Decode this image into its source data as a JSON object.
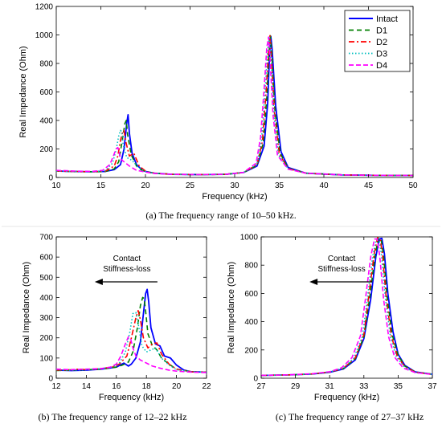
{
  "chart_data": [
    {
      "id": "a",
      "type": "line",
      "caption_tag": "(a)",
      "caption": " The frequency range of 10–50 kHz.",
      "xlabel": "Frequency (kHz)",
      "ylabel": "Real Impedance (Ohm)",
      "xlim": [
        10,
        50
      ],
      "ylim": [
        0,
        1200
      ],
      "xticks": [
        10,
        15,
        20,
        25,
        30,
        35,
        40,
        45,
        50
      ],
      "yticks": [
        0,
        200,
        400,
        600,
        800,
        1000,
        1200
      ],
      "legend_position": "top-right",
      "series": [
        {
          "name": "Intact",
          "color": "#0000ff",
          "dash": "solid",
          "x": [
            10,
            12,
            14,
            15.5,
            16.5,
            17.2,
            17.6,
            17.9,
            18.05,
            18.2,
            18.5,
            19,
            19.5,
            20,
            21,
            23,
            26,
            29,
            31,
            32.5,
            33.3,
            33.7,
            33.9,
            34.05,
            34.2,
            34.6,
            35.2,
            36,
            38,
            42,
            46,
            50
          ],
          "y": [
            45,
            42,
            40,
            42,
            55,
            90,
            200,
            380,
            440,
            310,
            170,
            90,
            60,
            42,
            30,
            22,
            20,
            22,
            35,
            80,
            220,
            520,
            850,
            990,
            900,
            500,
            180,
            70,
            30,
            18,
            15,
            14
          ]
        },
        {
          "name": "D1",
          "color": "#008000",
          "dash": "6,4",
          "x": [
            10,
            12,
            14,
            15.5,
            16.5,
            17,
            17.4,
            17.7,
            17.85,
            18,
            18.4,
            19,
            19.5,
            20,
            21,
            23,
            26,
            29,
            31,
            32.5,
            33.2,
            33.6,
            33.85,
            34,
            34.15,
            34.5,
            35.1,
            36,
            38,
            42,
            46,
            50
          ],
          "y": [
            45,
            42,
            40,
            42,
            60,
            110,
            260,
            380,
            400,
            300,
            160,
            80,
            55,
            40,
            30,
            22,
            20,
            22,
            35,
            85,
            240,
            560,
            880,
            995,
            880,
            480,
            170,
            65,
            30,
            18,
            15,
            14
          ]
        },
        {
          "name": "D2",
          "color": "#ff0000",
          "dash": "7,3,2,3",
          "x": [
            10,
            12,
            14,
            15.5,
            16.5,
            16.9,
            17.2,
            17.45,
            17.6,
            17.8,
            18.2,
            18.7,
            19.3,
            20,
            21,
            23,
            26,
            29,
            31,
            32.5,
            33.1,
            33.5,
            33.8,
            33.95,
            34.1,
            34.45,
            35,
            36,
            38,
            42,
            46,
            50
          ],
          "y": [
            45,
            42,
            40,
            45,
            80,
            150,
            260,
            320,
            330,
            250,
            150,
            170,
            80,
            45,
            30,
            22,
            20,
            22,
            35,
            90,
            250,
            580,
            890,
            995,
            860,
            460,
            165,
            62,
            30,
            18,
            15,
            14
          ]
        },
        {
          "name": "D3",
          "color": "#00bfbf",
          "dash": "1.5,2.5",
          "x": [
            10,
            12,
            14,
            15.5,
            16.3,
            16.7,
            17,
            17.2,
            17.35,
            17.5,
            17.9,
            18.5,
            19.2,
            20,
            21,
            23,
            26,
            29,
            31,
            32.5,
            33,
            33.4,
            33.7,
            33.9,
            34.05,
            34.4,
            34.9,
            36,
            38,
            42,
            46,
            50
          ],
          "y": [
            45,
            42,
            40,
            48,
            100,
            190,
            290,
            330,
            320,
            230,
            140,
            120,
            70,
            42,
            30,
            22,
            20,
            22,
            35,
            95,
            260,
            600,
            900,
            990,
            860,
            450,
            160,
            60,
            30,
            18,
            15,
            14
          ]
        },
        {
          "name": "D4",
          "color": "#ff00ff",
          "dash": "6,3",
          "x": [
            10,
            12,
            14,
            15.2,
            16,
            16.4,
            16.7,
            16.9,
            17.05,
            17.2,
            17.6,
            18.2,
            19,
            20,
            21,
            23,
            26,
            29,
            31,
            32.4,
            32.9,
            33.3,
            33.6,
            33.8,
            33.95,
            34.3,
            34.8,
            36,
            38,
            42,
            46,
            50
          ],
          "y": [
            50,
            45,
            42,
            50,
            90,
            150,
            200,
            210,
            180,
            130,
            110,
            80,
            50,
            38,
            28,
            22,
            20,
            22,
            36,
            100,
            280,
            620,
            910,
            985,
            850,
            440,
            155,
            58,
            30,
            18,
            15,
            14
          ]
        }
      ]
    },
    {
      "id": "b",
      "type": "line",
      "caption_tag": "(b)",
      "caption": " The frequency range of 12–22 kHz",
      "xlabel": "Frequency (kHz)",
      "ylabel": "Real Impedance (Ohm)",
      "xlim": [
        12,
        22
      ],
      "ylim": [
        0,
        700
      ],
      "xticks": [
        12,
        14,
        16,
        18,
        20,
        22
      ],
      "yticks": [
        0,
        100,
        200,
        300,
        400,
        500,
        600,
        700
      ],
      "annotation": {
        "line1": "Contact",
        "line2": "Stiffness-loss",
        "arrow": "left"
      },
      "series": [
        {
          "name": "Intact",
          "color": "#0000ff",
          "dash": "solid",
          "x": [
            12,
            13,
            14,
            15,
            15.5,
            16,
            16.5,
            16.8,
            17,
            17.3,
            17.6,
            17.8,
            17.95,
            18.05,
            18.15,
            18.3,
            18.6,
            18.9,
            19.2,
            19.6,
            20,
            20.5,
            21,
            22
          ],
          "y": [
            40,
            38,
            40,
            45,
            50,
            55,
            75,
            60,
            70,
            100,
            180,
            320,
            420,
            440,
            380,
            250,
            170,
            160,
            110,
            100,
            65,
            40,
            32,
            30
          ]
        },
        {
          "name": "D1",
          "color": "#008000",
          "dash": "6,4",
          "x": [
            12,
            13,
            14,
            15,
            15.5,
            16,
            16.4,
            16.8,
            17.1,
            17.4,
            17.6,
            17.75,
            17.85,
            17.95,
            18.1,
            18.4,
            18.7,
            19,
            19.5,
            20,
            21,
            22
          ],
          "y": [
            38,
            40,
            42,
            45,
            50,
            55,
            65,
            80,
            130,
            250,
            360,
            400,
            395,
            330,
            220,
            160,
            140,
            100,
            70,
            45,
            32,
            30
          ]
        },
        {
          "name": "D2",
          "color": "#ff0000",
          "dash": "7,3,2,3",
          "x": [
            12,
            13,
            13.5,
            14,
            15,
            15.7,
            16.2,
            16.7,
            17,
            17.3,
            17.45,
            17.6,
            17.8,
            18.1,
            18.4,
            18.7,
            19,
            19.5,
            20,
            21,
            22
          ],
          "y": [
            40,
            42,
            45,
            42,
            48,
            55,
            70,
            110,
            200,
            300,
            335,
            290,
            200,
            150,
            170,
            175,
            120,
            70,
            45,
            32,
            30
          ]
        },
        {
          "name": "D3",
          "color": "#00bfbf",
          "dash": "1.5,2.5",
          "x": [
            12,
            13,
            14,
            15,
            15.7,
            16.2,
            16.6,
            16.9,
            17.1,
            17.3,
            17.5,
            17.7,
            18,
            18.3,
            18.6,
            19,
            19.5,
            20,
            21,
            22
          ],
          "y": [
            42,
            40,
            42,
            48,
            55,
            75,
            130,
            230,
            320,
            325,
            250,
            160,
            130,
            140,
            150,
            100,
            65,
            42,
            32,
            30
          ]
        },
        {
          "name": "D4",
          "color": "#ff00ff",
          "dash": "6,3",
          "x": [
            12,
            13,
            14,
            15,
            15.6,
            16,
            16.3,
            16.6,
            16.8,
            16.95,
            17.1,
            17.3,
            17.6,
            18,
            18.4,
            19,
            19.5,
            20,
            21,
            22
          ],
          "y": [
            45,
            42,
            45,
            48,
            55,
            70,
            110,
            170,
            205,
            195,
            150,
            110,
            90,
            75,
            60,
            48,
            40,
            35,
            30,
            28
          ]
        }
      ]
    },
    {
      "id": "c",
      "type": "line",
      "caption_tag": "(c)",
      "caption": " The frequency range of 27–37 kHz",
      "xlabel": "Frequency (kHz)",
      "ylabel": "Real Impedance (Ohm)",
      "xlim": [
        27,
        37
      ],
      "ylim": [
        0,
        1000
      ],
      "xticks": [
        27,
        29,
        31,
        33,
        35,
        37
      ],
      "yticks": [
        0,
        200,
        400,
        600,
        800,
        1000
      ],
      "annotation": {
        "line1": "Contact",
        "line2": "Stiffness-loss",
        "arrow": "left"
      },
      "series": [
        {
          "name": "Intact",
          "color": "#0000ff",
          "dash": "solid",
          "x": [
            27,
            28,
            29,
            30,
            31,
            31.8,
            32.5,
            33,
            33.4,
            33.7,
            33.9,
            34.05,
            34.2,
            34.4,
            34.7,
            35,
            35.4,
            36,
            37
          ],
          "y": [
            20,
            22,
            25,
            30,
            42,
            65,
            130,
            280,
            560,
            860,
            985,
            990,
            880,
            600,
            330,
            170,
            90,
            45,
            28
          ]
        },
        {
          "name": "D1",
          "color": "#008000",
          "dash": "6,4",
          "x": [
            27,
            28,
            29,
            30,
            31,
            31.8,
            32.5,
            33,
            33.35,
            33.65,
            33.85,
            34,
            34.15,
            34.35,
            34.65,
            35,
            35.4,
            36,
            37
          ],
          "y": [
            20,
            22,
            25,
            30,
            43,
            68,
            138,
            295,
            580,
            870,
            990,
            985,
            870,
            580,
            310,
            160,
            85,
            44,
            28
          ]
        },
        {
          "name": "D2",
          "color": "#ff0000",
          "dash": "7,3,2,3",
          "x": [
            27,
            28,
            29,
            30,
            31,
            31.8,
            32.5,
            33,
            33.3,
            33.6,
            33.8,
            33.95,
            34.1,
            34.3,
            34.6,
            34.95,
            35.4,
            36,
            37
          ],
          "y": [
            20,
            22,
            25,
            31,
            44,
            70,
            145,
            310,
            600,
            880,
            995,
            985,
            860,
            570,
            300,
            155,
            80,
            42,
            27
          ]
        },
        {
          "name": "D3",
          "color": "#00bfbf",
          "dash": "1.5,2.5",
          "x": [
            27,
            28,
            29,
            30,
            31,
            31.8,
            32.4,
            32.9,
            33.2,
            33.5,
            33.72,
            33.88,
            34.03,
            34.25,
            34.55,
            34.9,
            35.4,
            36,
            37
          ],
          "y": [
            20,
            22,
            25,
            31,
            45,
            72,
            140,
            290,
            560,
            850,
            985,
            990,
            870,
            570,
            295,
            150,
            75,
            40,
            27
          ]
        },
        {
          "name": "D4",
          "color": "#ff00ff",
          "dash": "6,3",
          "x": [
            27,
            28,
            29,
            30,
            31,
            31.7,
            32.3,
            32.8,
            33.1,
            33.4,
            33.62,
            33.78,
            33.93,
            34.15,
            34.45,
            34.8,
            35.3,
            36,
            37
          ],
          "y": [
            20,
            22,
            26,
            32,
            46,
            74,
            145,
            300,
            570,
            860,
            985,
            985,
            860,
            560,
            290,
            148,
            72,
            40,
            27
          ]
        }
      ]
    }
  ]
}
